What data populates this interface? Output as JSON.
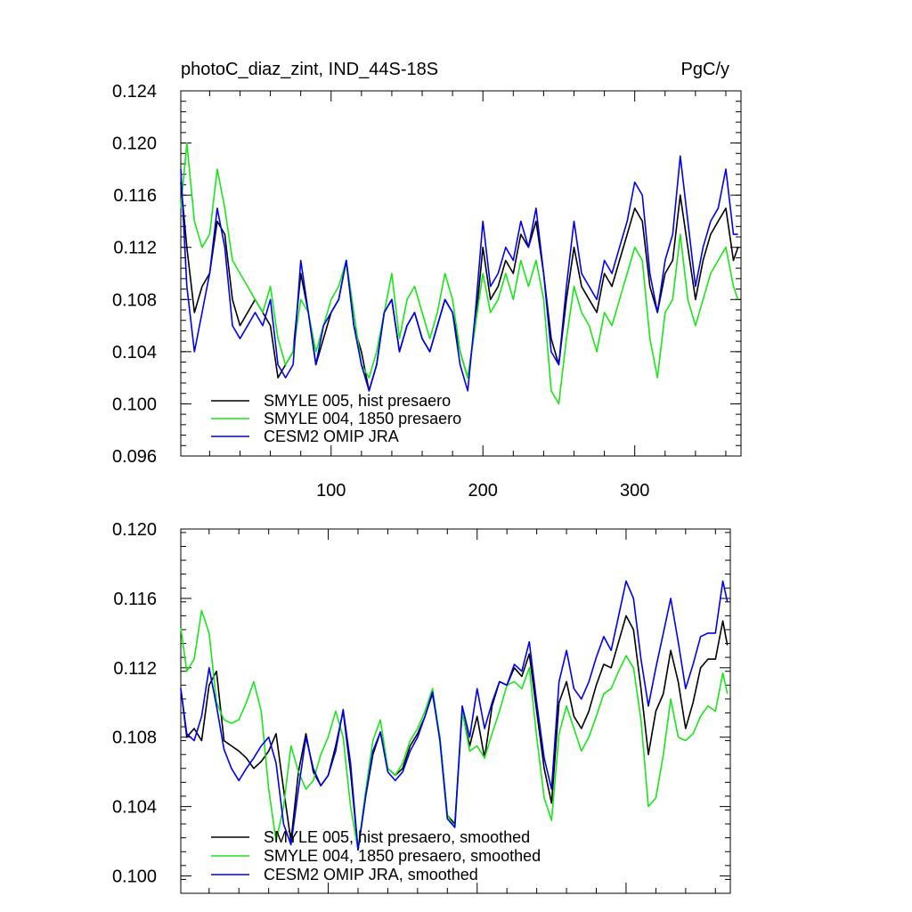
{
  "figure": {
    "title_left": "photoC_diaz_zint, IND_44S-18S",
    "title_right": "PgC/y"
  },
  "chart_data": [
    {
      "type": "line",
      "title": "photoC_diaz_zint, IND_44S-18S",
      "units": "PgC/y",
      "xlabel": "",
      "ylabel": "",
      "xlim": [
        1,
        370
      ],
      "ylim": [
        0.096,
        0.124
      ],
      "xticks": [
        100,
        200,
        300
      ],
      "xtick_labels": [
        "100",
        "200",
        "300"
      ],
      "yticks": [
        0.096,
        0.1,
        0.104,
        0.108,
        0.112,
        0.116,
        0.12,
        0.124
      ],
      "ytick_labels": [
        "0.096",
        "0.100",
        "0.104",
        "0.108",
        "0.112",
        "0.116",
        "0.120",
        "0.124"
      ],
      "legend_position": "bottom-left",
      "series": [
        {
          "name": "SMYLE 005, hist presaero",
          "color": "#000000",
          "x": [
            1,
            5,
            10,
            15,
            20,
            25,
            30,
            35,
            40,
            45,
            50,
            55,
            60,
            65,
            70,
            75,
            80,
            85,
            90,
            95,
            100,
            105,
            110,
            115,
            120,
            125,
            130,
            135,
            140,
            145,
            150,
            155,
            160,
            165,
            170,
            175,
            180,
            185,
            190,
            195,
            200,
            205,
            210,
            215,
            220,
            225,
            230,
            235,
            240,
            245,
            250,
            255,
            260,
            265,
            270,
            275,
            280,
            285,
            290,
            295,
            300,
            305,
            310,
            315,
            320,
            325,
            330,
            335,
            340,
            345,
            350,
            355,
            360,
            365,
            368
          ],
          "values": [
            0.117,
            0.112,
            0.107,
            0.109,
            0.11,
            0.114,
            0.113,
            0.108,
            0.106,
            0.107,
            0.108,
            0.107,
            0.106,
            0.102,
            0.103,
            0.104,
            0.11,
            0.107,
            0.103,
            0.105,
            0.107,
            0.108,
            0.111,
            0.106,
            0.104,
            0.101,
            0.103,
            0.107,
            0.108,
            0.104,
            0.106,
            0.107,
            0.105,
            0.104,
            0.106,
            0.108,
            0.107,
            0.104,
            0.102,
            0.106,
            0.112,
            0.108,
            0.109,
            0.111,
            0.11,
            0.113,
            0.112,
            0.114,
            0.11,
            0.105,
            0.103,
            0.108,
            0.112,
            0.109,
            0.108,
            0.107,
            0.11,
            0.109,
            0.111,
            0.113,
            0.115,
            0.114,
            0.109,
            0.107,
            0.11,
            0.111,
            0.116,
            0.112,
            0.108,
            0.111,
            0.113,
            0.114,
            0.115,
            0.111,
            0.112
          ]
        },
        {
          "name": "SMYLE 004, 1850 presaero",
          "color": "#19e619",
          "x": [
            1,
            5,
            10,
            15,
            20,
            25,
            30,
            35,
            40,
            45,
            50,
            55,
            60,
            65,
            70,
            75,
            80,
            85,
            90,
            95,
            100,
            105,
            110,
            115,
            120,
            125,
            130,
            135,
            140,
            145,
            150,
            155,
            160,
            165,
            170,
            175,
            180,
            185,
            190,
            195,
            200,
            205,
            210,
            215,
            220,
            225,
            230,
            235,
            240,
            245,
            250,
            255,
            260,
            265,
            270,
            275,
            280,
            285,
            290,
            295,
            300,
            305,
            310,
            315,
            320,
            325,
            330,
            335,
            340,
            345,
            350,
            355,
            360,
            365,
            368
          ],
          "values": [
            0.115,
            0.12,
            0.114,
            0.112,
            0.113,
            0.118,
            0.115,
            0.111,
            0.11,
            0.109,
            0.108,
            0.107,
            0.109,
            0.105,
            0.103,
            0.104,
            0.108,
            0.107,
            0.104,
            0.106,
            0.108,
            0.109,
            0.111,
            0.107,
            0.103,
            0.102,
            0.104,
            0.107,
            0.11,
            0.105,
            0.108,
            0.109,
            0.107,
            0.105,
            0.107,
            0.11,
            0.108,
            0.104,
            0.102,
            0.106,
            0.11,
            0.107,
            0.108,
            0.11,
            0.108,
            0.111,
            0.109,
            0.111,
            0.108,
            0.101,
            0.1,
            0.105,
            0.109,
            0.107,
            0.106,
            0.104,
            0.107,
            0.106,
            0.108,
            0.11,
            0.112,
            0.111,
            0.105,
            0.102,
            0.107,
            0.108,
            0.113,
            0.108,
            0.106,
            0.108,
            0.11,
            0.111,
            0.112,
            0.109,
            0.108
          ]
        },
        {
          "name": "CESM2 OMIP JRA",
          "color": "#0000ee",
          "x": [
            1,
            5,
            10,
            15,
            20,
            25,
            30,
            35,
            40,
            45,
            50,
            55,
            60,
            65,
            70,
            75,
            80,
            85,
            90,
            95,
            100,
            105,
            110,
            115,
            120,
            125,
            130,
            135,
            140,
            145,
            150,
            155,
            160,
            165,
            170,
            175,
            180,
            185,
            190,
            195,
            200,
            205,
            210,
            215,
            220,
            225,
            230,
            235,
            240,
            245,
            250,
            255,
            260,
            265,
            270,
            275,
            280,
            285,
            290,
            295,
            300,
            305,
            310,
            315,
            320,
            325,
            330,
            335,
            340,
            345,
            350,
            355,
            360,
            365,
            368
          ],
          "values": [
            0.118,
            0.109,
            0.104,
            0.107,
            0.11,
            0.115,
            0.112,
            0.106,
            0.105,
            0.106,
            0.107,
            0.106,
            0.108,
            0.103,
            0.102,
            0.103,
            0.111,
            0.107,
            0.103,
            0.106,
            0.107,
            0.108,
            0.111,
            0.106,
            0.103,
            0.101,
            0.103,
            0.107,
            0.108,
            0.104,
            0.106,
            0.107,
            0.105,
            0.104,
            0.106,
            0.108,
            0.107,
            0.103,
            0.101,
            0.107,
            0.114,
            0.109,
            0.11,
            0.112,
            0.111,
            0.114,
            0.112,
            0.115,
            0.11,
            0.104,
            0.103,
            0.109,
            0.114,
            0.11,
            0.109,
            0.108,
            0.111,
            0.11,
            0.112,
            0.114,
            0.117,
            0.116,
            0.11,
            0.107,
            0.111,
            0.113,
            0.119,
            0.114,
            0.109,
            0.112,
            0.114,
            0.115,
            0.118,
            0.113,
            0.113
          ]
        }
      ]
    },
    {
      "type": "line",
      "title": "",
      "xlabel": "",
      "ylabel": "",
      "xlim": [
        1,
        370
      ],
      "ylim": [
        0.099,
        0.12
      ],
      "xticks": [
        100,
        200,
        300
      ],
      "xtick_labels": [],
      "yticks": [
        0.1,
        0.104,
        0.108,
        0.112,
        0.116,
        0.12
      ],
      "ytick_labels": [
        "0.100",
        "0.104",
        "0.108",
        "0.112",
        "0.116",
        "0.120"
      ],
      "legend_position": "bottom-left",
      "series": [
        {
          "name": "SMYLE 005, hist presaero, smoothed",
          "color": "#000000",
          "x": [
            1,
            5,
            10,
            15,
            20,
            25,
            30,
            35,
            40,
            45,
            50,
            55,
            60,
            65,
            70,
            75,
            80,
            85,
            90,
            95,
            100,
            105,
            110,
            115,
            120,
            125,
            130,
            135,
            140,
            145,
            150,
            155,
            160,
            165,
            170,
            175,
            180,
            185,
            190,
            195,
            200,
            205,
            210,
            215,
            220,
            225,
            230,
            235,
            240,
            245,
            250,
            255,
            260,
            265,
            270,
            275,
            280,
            285,
            290,
            295,
            300,
            305,
            310,
            315,
            320,
            325,
            330,
            335,
            340,
            345,
            350,
            355,
            360,
            365,
            368
          ],
          "values": [
            0.1108,
            0.108,
            0.1085,
            0.1078,
            0.111,
            0.1118,
            0.1078,
            0.1075,
            0.1072,
            0.1068,
            0.1062,
            0.1066,
            0.1072,
            0.1082,
            0.105,
            0.102,
            0.106,
            0.1082,
            0.106,
            0.1052,
            0.1058,
            0.1075,
            0.1095,
            0.106,
            0.1015,
            0.1045,
            0.107,
            0.1083,
            0.1062,
            0.1058,
            0.1062,
            0.1075,
            0.1082,
            0.1092,
            0.1105,
            0.108,
            0.1035,
            0.103,
            0.1095,
            0.1075,
            0.1092,
            0.1068,
            0.1098,
            0.1112,
            0.111,
            0.112,
            0.1115,
            0.1128,
            0.1095,
            0.1062,
            0.1042,
            0.11,
            0.1112,
            0.1092,
            0.1085,
            0.1095,
            0.111,
            0.1122,
            0.112,
            0.1135,
            0.115,
            0.1142,
            0.1108,
            0.107,
            0.1095,
            0.1105,
            0.113,
            0.1112,
            0.1085,
            0.11,
            0.112,
            0.1125,
            0.1125,
            0.1147,
            0.1133
          ]
        },
        {
          "name": "SMYLE 004, 1850 presaero, smoothed",
          "color": "#19e619",
          "x": [
            1,
            5,
            10,
            15,
            20,
            25,
            30,
            35,
            40,
            45,
            50,
            55,
            60,
            65,
            70,
            75,
            80,
            85,
            90,
            95,
            100,
            105,
            110,
            115,
            120,
            125,
            130,
            135,
            140,
            145,
            150,
            155,
            160,
            165,
            170,
            175,
            180,
            185,
            190,
            195,
            200,
            205,
            210,
            215,
            220,
            225,
            230,
            235,
            240,
            245,
            250,
            255,
            260,
            265,
            270,
            275,
            280,
            285,
            290,
            295,
            300,
            305,
            310,
            315,
            320,
            325,
            330,
            335,
            340,
            345,
            350,
            355,
            360,
            365,
            368
          ],
          "values": [
            0.1143,
            0.1118,
            0.1125,
            0.1153,
            0.114,
            0.11,
            0.109,
            0.1088,
            0.109,
            0.11,
            0.1112,
            0.1095,
            0.105,
            0.102,
            0.104,
            0.1075,
            0.106,
            0.105,
            0.1055,
            0.107,
            0.108,
            0.1095,
            0.108,
            0.104,
            0.1015,
            0.1048,
            0.1078,
            0.109,
            0.1062,
            0.1058,
            0.1065,
            0.1078,
            0.1085,
            0.1095,
            0.1108,
            0.108,
            0.1035,
            0.1028,
            0.1095,
            0.1072,
            0.1075,
            0.1068,
            0.1082,
            0.1095,
            0.111,
            0.1112,
            0.1108,
            0.112,
            0.108,
            0.1045,
            0.1032,
            0.1082,
            0.1098,
            0.1085,
            0.1072,
            0.108,
            0.1092,
            0.1105,
            0.1108,
            0.1118,
            0.1127,
            0.112,
            0.109,
            0.104,
            0.1045,
            0.107,
            0.1102,
            0.108,
            0.1078,
            0.1082,
            0.1092,
            0.1098,
            0.1095,
            0.1117,
            0.1105
          ]
        },
        {
          "name": "CESM2 OMIP JRA, smoothed",
          "color": "#0000ee",
          "x": [
            1,
            5,
            10,
            15,
            20,
            25,
            30,
            35,
            40,
            45,
            50,
            55,
            60,
            65,
            70,
            75,
            80,
            85,
            90,
            95,
            100,
            105,
            110,
            115,
            120,
            125,
            130,
            135,
            140,
            145,
            150,
            155,
            160,
            165,
            170,
            175,
            180,
            185,
            190,
            195,
            200,
            205,
            210,
            215,
            220,
            225,
            230,
            235,
            240,
            245,
            250,
            255,
            260,
            265,
            270,
            275,
            280,
            285,
            290,
            295,
            300,
            305,
            310,
            315,
            320,
            325,
            330,
            335,
            340,
            345,
            350,
            355,
            360,
            365,
            368
          ],
          "values": [
            0.1108,
            0.1082,
            0.1078,
            0.1092,
            0.112,
            0.1098,
            0.1073,
            0.1062,
            0.1055,
            0.1062,
            0.1068,
            0.1075,
            0.108,
            0.1065,
            0.103,
            0.1018,
            0.105,
            0.108,
            0.1062,
            0.1052,
            0.1058,
            0.1072,
            0.1096,
            0.1065,
            0.1015,
            0.1045,
            0.1072,
            0.1083,
            0.106,
            0.1055,
            0.106,
            0.1072,
            0.108,
            0.1092,
            0.1106,
            0.1078,
            0.1033,
            0.1028,
            0.1098,
            0.108,
            0.1108,
            0.1085,
            0.11,
            0.1112,
            0.111,
            0.1122,
            0.1118,
            0.1135,
            0.11,
            0.1068,
            0.105,
            0.1112,
            0.113,
            0.1108,
            0.1102,
            0.1112,
            0.1126,
            0.1138,
            0.113,
            0.115,
            0.117,
            0.116,
            0.1125,
            0.1098,
            0.112,
            0.114,
            0.116,
            0.1135,
            0.1108,
            0.1122,
            0.1138,
            0.114,
            0.114,
            0.117,
            0.1158
          ]
        }
      ]
    }
  ]
}
